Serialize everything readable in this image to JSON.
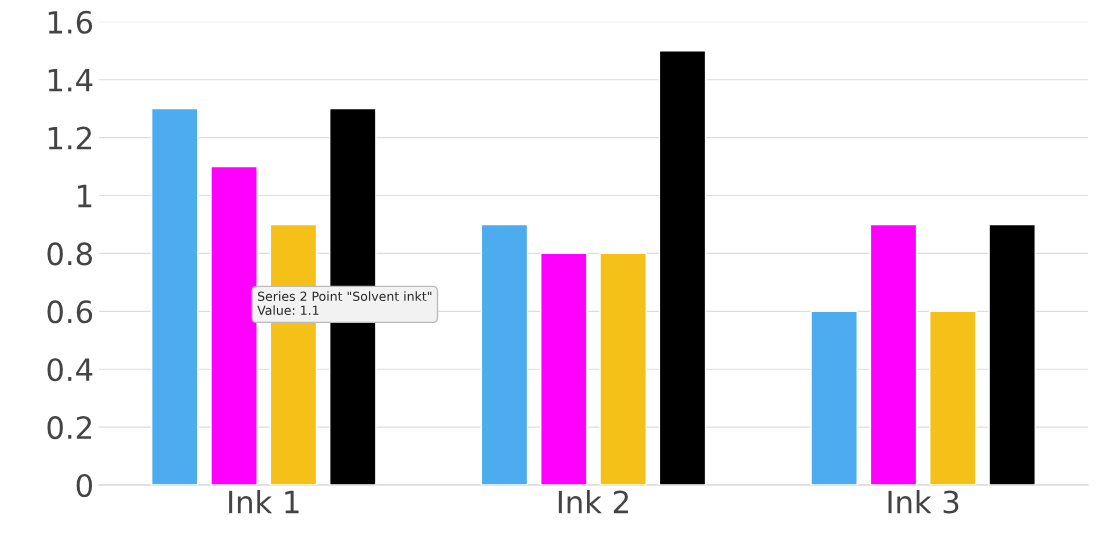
{
  "chart_data": {
    "type": "bar",
    "categories": [
      "Ink 1",
      "Ink 2",
      "Ink 3"
    ],
    "series": [
      {
        "color": "#4dacf0",
        "values": [
          1.3,
          0.9,
          0.6
        ]
      },
      {
        "color": "#ff00ff",
        "values": [
          1.1,
          0.8,
          0.9
        ]
      },
      {
        "color": "#f5c018",
        "values": [
          0.9,
          0.8,
          0.6
        ]
      },
      {
        "color": "#000000",
        "values": [
          1.3,
          1.5,
          0.9
        ]
      }
    ],
    "ylim": [
      0,
      1.6
    ],
    "yticks": [
      0,
      0.2,
      0.4,
      0.6,
      0.8,
      1,
      1.2,
      1.4,
      1.6
    ],
    "grid": "y",
    "legend": false,
    "annotations": [
      "Series 2 Point \"Solvent inkt\"\nValue: 1.1"
    ]
  }
}
